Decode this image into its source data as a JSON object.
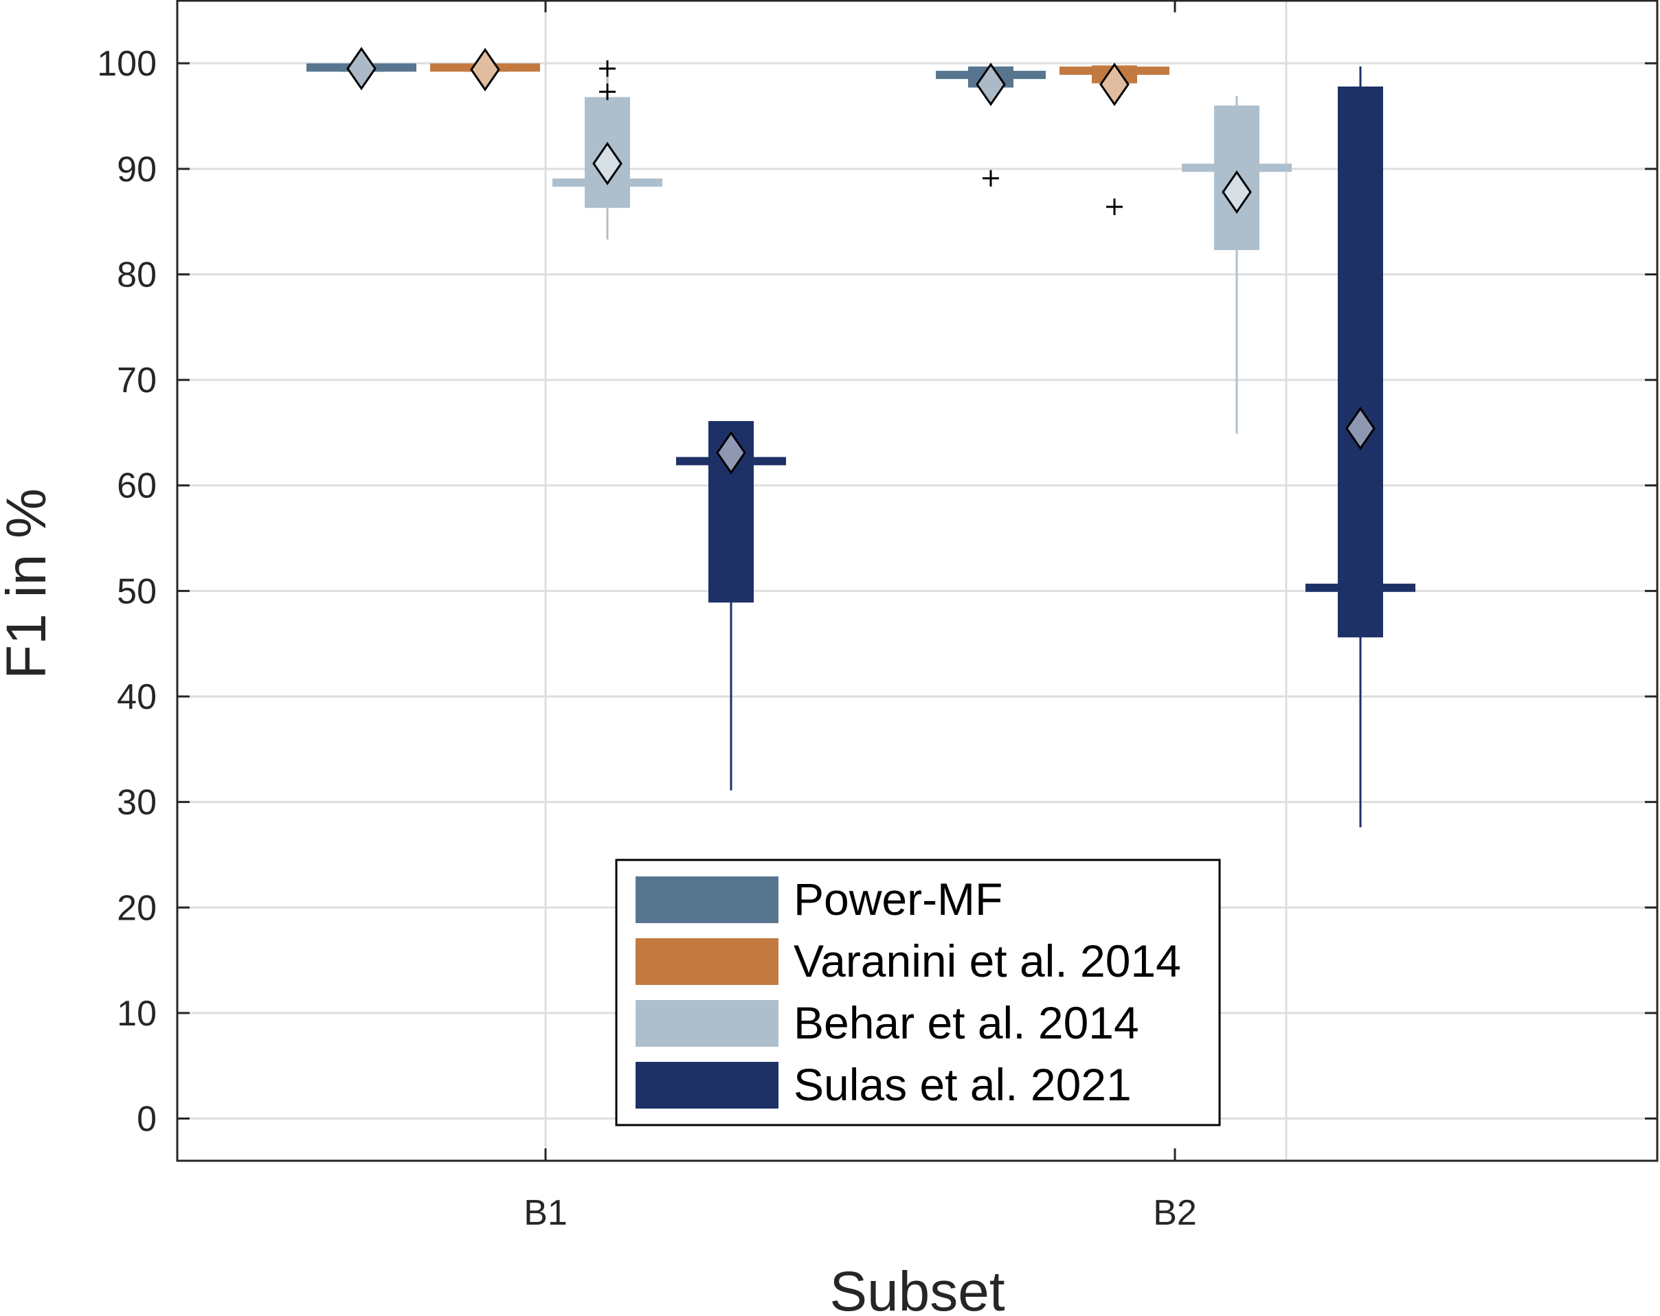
{
  "chart_data": {
    "type": "boxplot",
    "xlabel": "Subset",
    "ylabel": "F1 in %",
    "ylim": [
      -4,
      106
    ],
    "yticks": [
      0,
      10,
      20,
      30,
      40,
      50,
      60,
      70,
      80,
      90,
      100
    ],
    "grid": true,
    "legend_position": "lower-center",
    "categories": [
      "B1",
      "B2"
    ],
    "series": [
      {
        "name": "Power-MF",
        "color": "#587590",
        "boxes": [
          {
            "category": "B1",
            "q1": 99.2,
            "median": 99.6,
            "q3": 99.9,
            "whisker_low": 98.7,
            "whisker_high": 99.9,
            "mean": 99.5,
            "outliers": []
          },
          {
            "category": "B2",
            "q1": 97.7,
            "median": 98.9,
            "q3": 99.7,
            "whisker_low": 97.7,
            "whisker_high": 99.7,
            "mean": 98.0,
            "outliers": [
              89.1
            ]
          }
        ]
      },
      {
        "name": "Varanini et al. 2014",
        "color": "#c27a40",
        "boxes": [
          {
            "category": "B1",
            "q1": 99.2,
            "median": 99.6,
            "q3": 99.9,
            "whisker_low": 99.2,
            "whisker_high": 99.9,
            "mean": 99.4,
            "outliers": []
          },
          {
            "category": "B2",
            "q1": 98.1,
            "median": 99.3,
            "q3": 99.8,
            "whisker_low": 98.1,
            "whisker_high": 99.8,
            "mean": 98.0,
            "outliers": [
              86.4
            ]
          }
        ]
      },
      {
        "name": "Behar et al. 2014",
        "color": "#adbfcd",
        "boxes": [
          {
            "category": "B1",
            "q1": 86.3,
            "median": 88.7,
            "q3": 96.8,
            "whisker_low": 83.3,
            "whisker_high": 98.7,
            "mean": 90.5,
            "outliers": [
              99.5,
              97.3
            ]
          },
          {
            "category": "B2",
            "q1": 82.3,
            "median": 90.1,
            "q3": 96.0,
            "whisker_low": 64.9,
            "whisker_high": 96.9,
            "mean": 87.8,
            "outliers": []
          }
        ]
      },
      {
        "name": "Sulas et al. 2021",
        "color": "#1e3166",
        "boxes": [
          {
            "category": "B1",
            "q1": 48.9,
            "median": 62.3,
            "q3": 66.1,
            "whisker_low": 31.1,
            "whisker_high": 66.1,
            "mean": 63.1,
            "outliers": []
          },
          {
            "category": "B2",
            "q1": 45.6,
            "median": 50.3,
            "q3": 97.8,
            "whisker_low": 27.6,
            "whisker_high": 99.7,
            "mean": 65.4,
            "outliers": []
          }
        ]
      }
    ]
  }
}
